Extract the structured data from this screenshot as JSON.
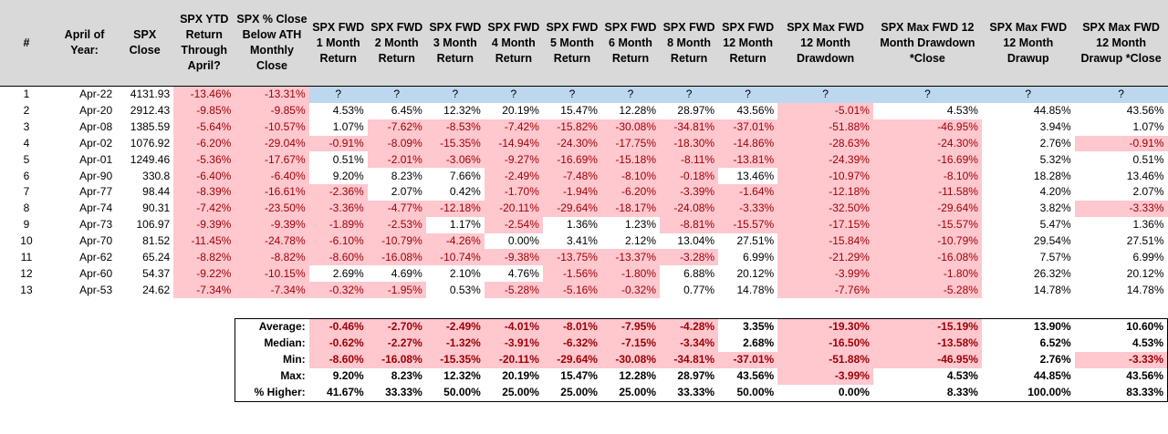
{
  "headers": [
    "#",
    "April of Year:",
    "SPX Close",
    "SPX YTD Return Through April?",
    "SPX % Close Below ATH Monthly Close",
    "SPX FWD 1 Month Return",
    "SPX FWD 2 Month Return",
    "SPX FWD 3 Month Return",
    "SPX FWD 4 Month Return",
    "SPX FWD 5 Month Return",
    "SPX FWD 6 Month Return",
    "SPX FWD 8 Month Return",
    "SPX FWD 12 Month Return",
    "SPX Max FWD 12 Month Drawdown",
    "SPX Max FWD 12 Month Drawdown *Close",
    "SPX Max FWD 12 Month Drawup",
    "SPX Max FWD 12 Month Drawup *Close"
  ],
  "rows": [
    [
      "1",
      "Apr-22",
      "4131.93",
      "-13.46%",
      "-13.31%",
      "?",
      "?",
      "?",
      "?",
      "?",
      "?",
      "?",
      "?",
      "?",
      "?",
      "?",
      "?"
    ],
    [
      "2",
      "Apr-20",
      "2912.43",
      "-9.85%",
      "-9.85%",
      "4.53%",
      "6.45%",
      "12.32%",
      "20.19%",
      "15.47%",
      "12.28%",
      "28.97%",
      "43.56%",
      "-5.01%",
      "4.53%",
      "44.85%",
      "43.56%"
    ],
    [
      "3",
      "Apr-08",
      "1385.59",
      "-5.64%",
      "-10.57%",
      "1.07%",
      "-7.62%",
      "-8.53%",
      "-7.42%",
      "-15.82%",
      "-30.08%",
      "-34.81%",
      "-37.01%",
      "-51.88%",
      "-46.95%",
      "3.94%",
      "1.07%"
    ],
    [
      "4",
      "Apr-02",
      "1076.92",
      "-6.20%",
      "-29.04%",
      "-0.91%",
      "-8.09%",
      "-15.35%",
      "-14.94%",
      "-24.30%",
      "-17.75%",
      "-18.30%",
      "-14.86%",
      "-28.63%",
      "-24.30%",
      "2.76%",
      "-0.91%"
    ],
    [
      "5",
      "Apr-01",
      "1249.46",
      "-5.36%",
      "-17.67%",
      "0.51%",
      "-2.01%",
      "-3.06%",
      "-9.27%",
      "-16.69%",
      "-15.18%",
      "-8.11%",
      "-13.81%",
      "-24.39%",
      "-16.69%",
      "5.32%",
      "0.51%"
    ],
    [
      "6",
      "Apr-90",
      "330.8",
      "-6.40%",
      "-6.40%",
      "9.20%",
      "8.23%",
      "7.66%",
      "-2.49%",
      "-7.48%",
      "-8.10%",
      "-0.18%",
      "13.46%",
      "-10.97%",
      "-8.10%",
      "18.28%",
      "13.46%"
    ],
    [
      "7",
      "Apr-77",
      "98.44",
      "-8.39%",
      "-16.61%",
      "-2.36%",
      "2.07%",
      "0.42%",
      "-1.70%",
      "-1.94%",
      "-6.20%",
      "-3.39%",
      "-1.64%",
      "-12.18%",
      "-11.58%",
      "4.20%",
      "2.07%"
    ],
    [
      "8",
      "Apr-74",
      "90.31",
      "-7.42%",
      "-23.50%",
      "-3.36%",
      "-4.77%",
      "-12.18%",
      "-20.11%",
      "-29.64%",
      "-18.17%",
      "-24.08%",
      "-3.33%",
      "-32.50%",
      "-29.64%",
      "3.82%",
      "-3.33%"
    ],
    [
      "9",
      "Apr-73",
      "106.97",
      "-9.39%",
      "-9.39%",
      "-1.89%",
      "-2.53%",
      "1.17%",
      "-2.54%",
      "1.36%",
      "1.23%",
      "-8.81%",
      "-15.57%",
      "-17.15%",
      "-15.57%",
      "5.47%",
      "1.36%"
    ],
    [
      "10",
      "Apr-70",
      "81.52",
      "-11.45%",
      "-24.78%",
      "-6.10%",
      "-10.79%",
      "-4.26%",
      "0.00%",
      "3.41%",
      "2.12%",
      "13.04%",
      "27.51%",
      "-15.84%",
      "-10.79%",
      "29.54%",
      "27.51%"
    ],
    [
      "11",
      "Apr-62",
      "65.24",
      "-8.82%",
      "-8.82%",
      "-8.60%",
      "-16.08%",
      "-10.74%",
      "-9.38%",
      "-13.75%",
      "-13.37%",
      "-3.28%",
      "6.99%",
      "-21.29%",
      "-16.08%",
      "7.57%",
      "6.99%"
    ],
    [
      "12",
      "Apr-60",
      "54.37",
      "-9.22%",
      "-10.15%",
      "2.69%",
      "4.69%",
      "2.10%",
      "4.76%",
      "-1.56%",
      "-1.80%",
      "6.88%",
      "20.12%",
      "-3.99%",
      "-1.80%",
      "26.32%",
      "20.12%"
    ],
    [
      "13",
      "Apr-53",
      "24.62",
      "-7.34%",
      "-7.34%",
      "-0.32%",
      "-1.95%",
      "0.53%",
      "-5.28%",
      "-5.16%",
      "-0.32%",
      "0.77%",
      "14.78%",
      "-7.76%",
      "-5.28%",
      "14.78%",
      "14.78%"
    ]
  ],
  "summary": [
    {
      "label": "Average:",
      "values": [
        "-0.46%",
        "-2.70%",
        "-2.49%",
        "-4.01%",
        "-8.01%",
        "-7.95%",
        "-4.28%",
        "3.35%",
        "-19.30%",
        "-15.19%",
        "13.90%",
        "10.60%"
      ]
    },
    {
      "label": "Median:",
      "values": [
        "-0.62%",
        "-2.27%",
        "-1.32%",
        "-3.91%",
        "-6.32%",
        "-7.15%",
        "-3.34%",
        "2.68%",
        "-16.50%",
        "-13.58%",
        "6.52%",
        "4.53%"
      ]
    },
    {
      "label": "Min:",
      "values": [
        "-8.60%",
        "-16.08%",
        "-15.35%",
        "-20.11%",
        "-29.64%",
        "-30.08%",
        "-34.81%",
        "-37.01%",
        "-51.88%",
        "-46.95%",
        "2.76%",
        "-3.33%"
      ]
    },
    {
      "label": "Max:",
      "values": [
        "9.20%",
        "8.23%",
        "12.32%",
        "20.19%",
        "15.47%",
        "12.28%",
        "28.97%",
        "43.56%",
        "-3.99%",
        "4.53%",
        "44.85%",
        "43.56%"
      ]
    },
    {
      "label": "% Higher:",
      "values": [
        "41.67%",
        "33.33%",
        "50.00%",
        "25.00%",
        "25.00%",
        "25.00%",
        "33.33%",
        "50.00%",
        "0.00%",
        "8.33%",
        "100.00%",
        "83.33%"
      ]
    }
  ],
  "colors": {
    "header_bg": "#d9d9d9",
    "current_row_bg": "#bdd7ee",
    "negative_bg": "#ffc7ce",
    "negative_text": "#9c0006"
  }
}
